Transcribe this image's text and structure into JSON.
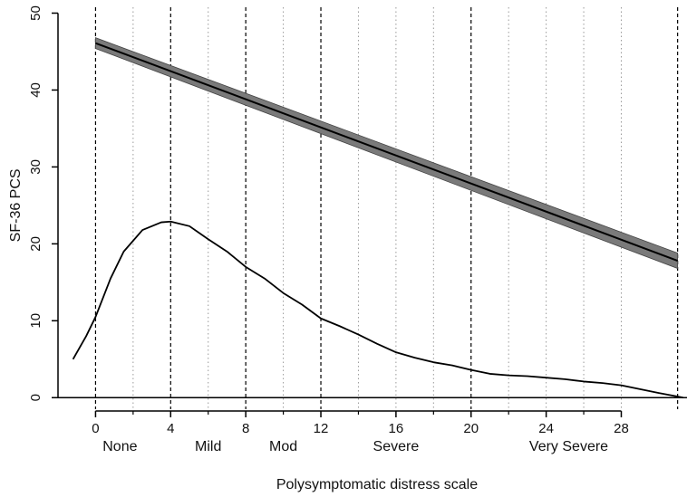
{
  "chart_data": {
    "type": "line",
    "xlabel": "Polysymptomatic distress scale",
    "ylabel": "SF-36 PCS",
    "xlim": [
      -2,
      31.5
    ],
    "ylim": [
      -1.5,
      51
    ],
    "x_ticks": [
      0,
      4,
      8,
      12,
      16,
      20,
      24,
      28
    ],
    "y_ticks": [
      0,
      10,
      20,
      30,
      40,
      50
    ],
    "minor_x_ticks": [
      2,
      6,
      10,
      14,
      18,
      22,
      26
    ],
    "reference_lines_x": [
      0,
      4,
      8,
      12,
      20,
      31
    ],
    "minor_gridlines_x": [
      2,
      6,
      10,
      14,
      16,
      18,
      22,
      24,
      26,
      28
    ],
    "baseline_y": 0,
    "severity_categories": [
      {
        "label": "None",
        "x": 1.3
      },
      {
        "label": "Mild",
        "x": 6
      },
      {
        "label": "Mod",
        "x": 10
      },
      {
        "label": "Severe",
        "x": 16
      },
      {
        "label": "Very Severe",
        "x": 25.2
      }
    ],
    "series": [
      {
        "kind": "regression-with-ci",
        "x": [
          0,
          31
        ],
        "y": [
          46.1,
          17.8
        ],
        "ci_lower": [
          45.4,
          16.8
        ],
        "ci_upper": [
          46.8,
          18.8
        ]
      },
      {
        "kind": "density",
        "x": [
          -1.2,
          -0.5,
          0,
          0.8,
          1.5,
          2.5,
          3.5,
          4,
          5,
          6,
          7,
          8,
          9,
          10,
          11,
          12,
          13,
          14,
          15,
          16,
          17,
          18,
          19,
          20,
          21,
          22,
          23,
          24,
          25,
          26,
          27,
          28,
          29,
          30,
          31,
          31.3
        ],
        "y": [
          5,
          8,
          10.5,
          15.5,
          19,
          21.8,
          22.8,
          22.9,
          22.3,
          20.6,
          19,
          17,
          15.5,
          13.6,
          12.1,
          10.3,
          9.3,
          8.2,
          7,
          5.9,
          5.2,
          4.6,
          4.2,
          3.6,
          3.1,
          2.9,
          2.8,
          2.6,
          2.4,
          2.1,
          1.9,
          1.6,
          1.1,
          0.6,
          0.15,
          0
        ]
      }
    ],
    "colors": {
      "ci_band": "#7a7a7a",
      "line": "#000000",
      "axis": "#000000"
    }
  }
}
